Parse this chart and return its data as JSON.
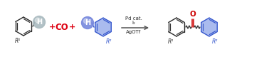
{
  "bg_color": "#ffffff",
  "arrow_color": "#555555",
  "black_color": "#2a2a2a",
  "red_color": "#dd0011",
  "blue_color": "#3355cc",
  "blue_fill": "#aabbee",
  "gray_bubble_color": "#aabbc0",
  "blue_bubble_color": "#7788dd",
  "oxygen_red": "#cc0000",
  "CO_text": "CO",
  "H_text": "H",
  "R1_text": "R¹",
  "R2_text": "R²",
  "pd_line1": "Pd cat.",
  "pd_line2": "I₂",
  "pd_line3": "AgOTf"
}
